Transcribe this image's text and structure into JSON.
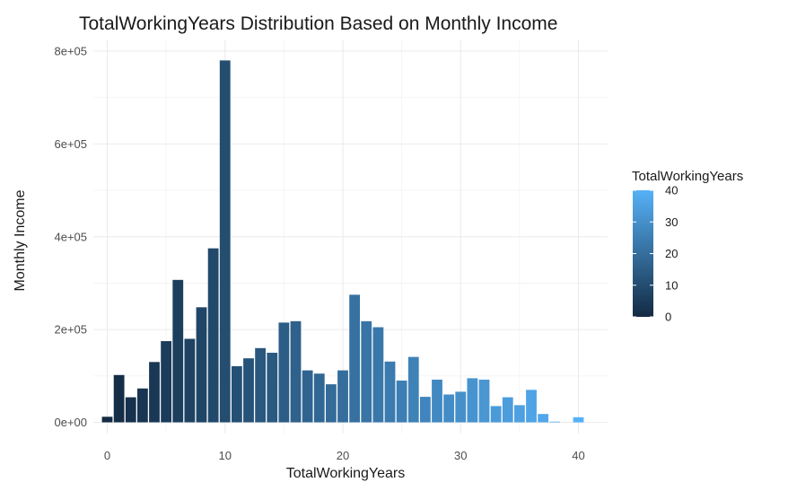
{
  "chart_data": {
    "type": "bar",
    "title": "TotalWorkingYears Distribution Based on Monthly Income",
    "xlabel": "TotalWorkingYears",
    "ylabel": "Monthly Income",
    "xlim": [
      -1,
      41
    ],
    "ylim": [
      0,
      820000
    ],
    "x_ticks": [
      0,
      10,
      20,
      30,
      40
    ],
    "x_tick_labels": [
      "0",
      "10",
      "20",
      "30",
      "40"
    ],
    "y_ticks": [
      0,
      200000,
      400000,
      600000,
      800000
    ],
    "y_tick_labels": [
      "0e+00",
      "2e+05",
      "4e+05",
      "6e+05",
      "8e+05"
    ],
    "grid": true,
    "x": [
      0,
      1,
      2,
      3,
      4,
      5,
      6,
      7,
      8,
      9,
      10,
      11,
      12,
      13,
      14,
      15,
      16,
      17,
      18,
      19,
      20,
      21,
      22,
      23,
      24,
      25,
      26,
      27,
      28,
      29,
      30,
      31,
      32,
      33,
      34,
      35,
      36,
      37,
      38,
      40
    ],
    "values": [
      12000,
      102000,
      54000,
      73000,
      130000,
      175000,
      307000,
      180000,
      248000,
      375000,
      780000,
      121000,
      138000,
      160000,
      150000,
      215000,
      218000,
      112000,
      105000,
      82000,
      112000,
      275000,
      218000,
      205000,
      131000,
      90000,
      141000,
      55000,
      92000,
      60000,
      66000,
      95000,
      92000,
      35000,
      54000,
      37000,
      70000,
      18000,
      1500,
      11000
    ],
    "color_scale": {
      "variable": "TotalWorkingYears",
      "low": "#132B43",
      "high": "#56B1F7",
      "range": [
        0,
        40
      ],
      "breaks": [
        0,
        10,
        20,
        30,
        40
      ],
      "break_labels": [
        "0",
        "10",
        "20",
        "30",
        "40"
      ]
    },
    "legend_position": "right"
  }
}
